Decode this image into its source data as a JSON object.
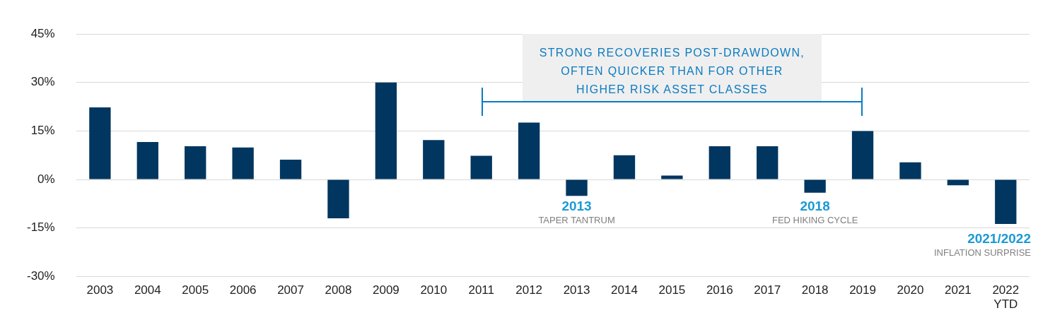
{
  "chart_data": {
    "type": "bar",
    "categories": [
      "2003",
      "2004",
      "2005",
      "2006",
      "2007",
      "2008",
      "2009",
      "2010",
      "2011",
      "2012",
      "2013",
      "2014",
      "2015",
      "2016",
      "2017",
      "2018",
      "2019",
      "2020",
      "2021",
      "2022 YTD"
    ],
    "values": [
      22.3,
      11.6,
      10.3,
      9.9,
      6.1,
      -12.0,
      30.0,
      12.2,
      7.3,
      17.6,
      -5.1,
      7.5,
      1.2,
      10.3,
      10.3,
      -4.1,
      15.0,
      5.3,
      -1.8,
      -13.8
    ],
    "color": "#003660",
    "ylim": [
      -30,
      45
    ],
    "yticks": [
      {
        "value": -30,
        "label": "-30%"
      },
      {
        "value": -15,
        "label": "-15%"
      },
      {
        "value": 0,
        "label": "0%"
      },
      {
        "value": 15,
        "label": "15%"
      },
      {
        "value": 30,
        "label": "30%"
      },
      {
        "value": 45,
        "label": "45%"
      }
    ],
    "grid": "y",
    "legend": false,
    "annotations": [
      "STRONG RECOVERIES POST-DRAWDOWN, OFTEN QUICKER THAN FOR OTHER HIGHER RISK ASSET CLASSES",
      "2013",
      "TAPER TANTRUM",
      "2018",
      "FED HIKING CYCLE",
      "2021/2022",
      "INFLATION SURPRISE"
    ]
  }
}
